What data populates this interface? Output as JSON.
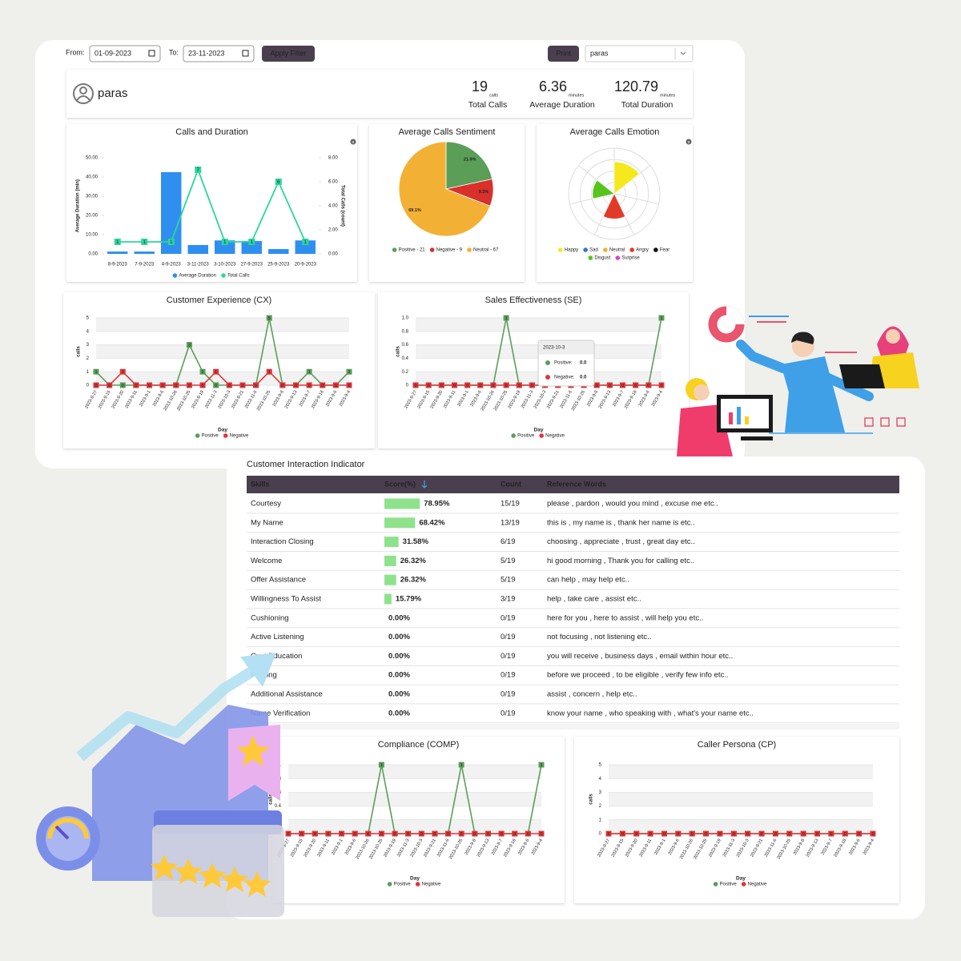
{
  "filter": {
    "from_label": "From:",
    "from": "01-09-2023",
    "to_label": "To:",
    "to": "23-11-2023",
    "apply": "Apply Filter",
    "print": "Print",
    "agent": "paras"
  },
  "profile": {
    "name": "paras",
    "stats": [
      {
        "value": 19,
        "unit": "calls",
        "label": "Total Calls"
      },
      {
        "value": 6.36,
        "unit": "minutes",
        "label": "Average Duration"
      },
      {
        "value": 120.79,
        "unit": "minutes",
        "label": "Total Duration"
      }
    ]
  },
  "chart_data": [
    {
      "type": "bar_line",
      "title": "Calls and Duration",
      "categories": [
        "8-9-2023",
        "7-9-2023",
        "4-9-2023",
        "3-11-2023",
        "3-10-2023",
        "27-9-2023",
        "25-9-2023",
        "20-9-2023"
      ],
      "series": [
        {
          "name": "Average Duration",
          "type": "bar",
          "color": "#2e8ff0",
          "values": [
            1.2,
            1.2,
            42.5,
            4.6,
            7,
            6.7,
            2.5,
            7
          ]
        },
        {
          "name": "Total Calls",
          "type": "line",
          "axis": "y2",
          "color": "#2bd69c",
          "values": [
            1,
            1,
            1,
            7,
            1,
            1,
            6,
            1
          ]
        }
      ],
      "ylabel": "Average Duration (min)",
      "y2label": "Total Calls (count)",
      "ylim": [
        0,
        50
      ],
      "yticks": [
        {
          "value": 0,
          "label": "0.00"
        },
        {
          "value": 10,
          "label": "10.00"
        },
        {
          "value": 20,
          "label": "20.00"
        },
        {
          "value": 30,
          "label": "30.00"
        },
        {
          "value": 40,
          "label": "40.00"
        },
        {
          "value": 50,
          "label": "50.00"
        }
      ],
      "y2lim": [
        0,
        8
      ],
      "y2ticks": [
        {
          "value": 0,
          "label": "0.00"
        },
        {
          "value": 2,
          "label": "2.00"
        },
        {
          "value": 4,
          "label": "4.00"
        },
        {
          "value": 6,
          "label": "6.00"
        },
        {
          "value": 8,
          "label": "8.00"
        }
      ]
    },
    {
      "type": "pie",
      "title": "Average Calls Sentiment",
      "labels": [
        "Positive - 21",
        "Negative - 9",
        "Neutral - 67"
      ],
      "values": [
        21.6,
        9.3,
        69.1
      ],
      "value_labels": [
        "21.6%",
        "9.3%",
        "69.1%"
      ],
      "colors": [
        "#5a9e58",
        "#d9302c",
        "#f2b134"
      ]
    },
    {
      "type": "polar_area",
      "title": "Average Calls Emotion",
      "categories": [
        "Happy",
        "Sad",
        "Neutral",
        "Angry",
        "Fear",
        "Disgust",
        "Surprise"
      ],
      "values": [
        2.8,
        0,
        0,
        2.2,
        0,
        1.9,
        0
      ],
      "rlim": [
        0,
        4
      ],
      "colors": [
        "#f5e81c",
        "#3d6fd6",
        "#f2b134",
        "#e23a28",
        "#111111",
        "#56c41a",
        "#e33fd0"
      ]
    },
    {
      "type": "line",
      "title": "Customer Experience (CX)",
      "ylabel": "calls",
      "xlabel": "Day",
      "categories": [
        "2023-9-27",
        "2023-9-15",
        "2023-9-20",
        "2023-9-11",
        "2023-9-1",
        "2023-9-6",
        "2023-10-26",
        "2023-10-25",
        "2023-9-19",
        "2023-11-3",
        "2023-10-3",
        "2023-9-21",
        "2023-11-6",
        "2023-10-25",
        "2023-9-8",
        "2023-9-13",
        "2023-9-7",
        "2023-9-18",
        "2023-9-6",
        "2023-9-4"
      ],
      "series": [
        {
          "name": "Positive",
          "color": "#5a9e58",
          "values": [
            1,
            0,
            0,
            0,
            0,
            0,
            0,
            3,
            1,
            0,
            0,
            0,
            0,
            5,
            0,
            0,
            1,
            0,
            0,
            1
          ]
        },
        {
          "name": "Negative",
          "color": "#e0353a",
          "values": [
            0,
            0,
            1,
            0,
            0,
            0,
            0,
            0,
            0,
            1,
            0,
            0,
            0,
            1,
            0,
            0,
            0,
            0,
            0,
            0
          ]
        }
      ],
      "ylim": [
        0,
        5
      ],
      "yticks": [
        0,
        1,
        2,
        3,
        4,
        5
      ],
      "grid": true
    },
    {
      "type": "line",
      "title": "Sales Effectiveness (SE)",
      "ylabel": "calls",
      "xlabel": "Day",
      "categories": [
        "2023-9-27",
        "2023-9-15",
        "2023-9-20",
        "2023-9-11",
        "2023-9-1",
        "2023-9-6",
        "2023-10-26",
        "2023-10-25",
        "2023-9-19",
        "2023-11-3",
        "2023-10-3",
        "2023-9-21",
        "2023-11-6",
        "2023-10-25",
        "2023-9-8",
        "2023-9-13",
        "2023-9-7",
        "2023-9-18",
        "2023-9-6",
        "2023-9-4"
      ],
      "series": [
        {
          "name": "Positive",
          "color": "#5a9e58",
          "values": [
            0,
            0,
            0,
            0,
            0,
            0,
            0,
            1,
            0,
            0,
            0,
            0,
            0,
            0,
            0,
            0,
            0,
            0,
            0,
            1
          ]
        },
        {
          "name": "Negative",
          "color": "#e0353a",
          "values": [
            0,
            0,
            0,
            0,
            0,
            0,
            0,
            0,
            0,
            0,
            0,
            0,
            0,
            0,
            0,
            0,
            0,
            0,
            0,
            0
          ]
        }
      ],
      "ylim": [
        0,
        1
      ],
      "yticks": [
        0,
        0.2,
        0.4,
        0.6,
        0.8,
        {
          "value": 1,
          "label": "1.0"
        }
      ],
      "grid": true,
      "tooltip": {
        "title": "2023-10-3",
        "items": [
          {
            "label": "Positive:",
            "value": "0.0"
          },
          {
            "label": "Negative:",
            "value": "0.0"
          }
        ]
      }
    },
    {
      "type": "line",
      "title": "Compliance (COMP)",
      "ylabel": "calls",
      "xlabel": "Day",
      "categories": [
        "2023-9-27",
        "2023-9-15",
        "2023-9-20",
        "2023-9-11",
        "2023-9-1",
        "2023-9-6",
        "2023-10-26",
        "2023-10-25",
        "2023-9-19",
        "2023-11-3",
        "2023-10-3",
        "2023-9-21",
        "2023-11-6",
        "2023-10-25",
        "2023-9-8",
        "2023-9-13",
        "2023-9-7",
        "2023-9-18",
        "2023-9-6",
        "2023-9-4"
      ],
      "series": [
        {
          "name": "Positive",
          "color": "#5a9e58",
          "values": [
            0,
            0,
            0,
            0,
            0,
            0,
            0,
            1,
            0,
            0,
            0,
            0,
            0,
            1,
            0,
            0,
            0,
            0,
            0,
            1
          ]
        },
        {
          "name": "Negative",
          "color": "#e0353a",
          "values": [
            0,
            0,
            0,
            0,
            0,
            0,
            0,
            0,
            0,
            0,
            0,
            0,
            0,
            0,
            0,
            0,
            0,
            0,
            0,
            0
          ]
        }
      ],
      "ylim": [
        0,
        1
      ],
      "yticks": [
        0,
        0.2,
        0.4,
        0.6,
        0.8,
        1
      ],
      "grid": true
    },
    {
      "type": "line",
      "title": "Caller Persona (CP)",
      "ylabel": "calls",
      "xlabel": "Day",
      "categories": [
        "2023-9-27",
        "2023-9-15",
        "2023-9-20",
        "2023-9-11",
        "2023-9-1",
        "2023-9-6",
        "2023-10-26",
        "2023-10-25",
        "2023-9-19",
        "2023-11-3",
        "2023-10-3",
        "2023-9-21",
        "2023-11-6",
        "2023-10-25",
        "2023-9-8",
        "2023-9-13",
        "2023-9-7",
        "2023-9-18",
        "2023-9-6",
        "2023-9-4"
      ],
      "series": [
        {
          "name": "Positive",
          "color": "#5a9e58",
          "values": [
            0,
            0,
            0,
            0,
            0,
            0,
            0,
            0,
            0,
            0,
            0,
            0,
            0,
            0,
            0,
            0,
            0,
            0,
            0,
            0
          ]
        },
        {
          "name": "Negative",
          "color": "#e0353a",
          "values": [
            0,
            0,
            0,
            0,
            0,
            0,
            0,
            0,
            0,
            0,
            0,
            0,
            0,
            0,
            0,
            0,
            0,
            0,
            0,
            0
          ]
        }
      ],
      "ylim": [
        0,
        5
      ],
      "yticks": [
        0,
        1,
        2,
        3,
        4,
        5
      ],
      "grid": true
    }
  ],
  "table": {
    "title": "Customer Interaction Indicator",
    "columns": [
      "Skills",
      "Score(%)",
      "Count",
      "Reference Words"
    ],
    "rows": [
      {
        "skill": "Courtesy",
        "score": 78.95,
        "score_label": "78.95%",
        "count": "15/19",
        "words": "please , pardon , would you mind , excuse me etc.."
      },
      {
        "skill": "My Name",
        "score": 68.42,
        "score_label": "68.42%",
        "count": "13/19",
        "words": "this is , my name is , thank her name is etc.."
      },
      {
        "skill": "Interaction Closing",
        "score": 31.58,
        "score_label": "31.58%",
        "count": "6/19",
        "words": "choosing , appreciate , trust , great day etc.."
      },
      {
        "skill": "Welcome",
        "score": 26.32,
        "score_label": "26.32%",
        "count": "5/19",
        "words": "hi good morning , Thank you for calling etc.."
      },
      {
        "skill": "Offer Assistance",
        "score": 26.32,
        "score_label": "26.32%",
        "count": "5/19",
        "words": "can help , may help etc.."
      },
      {
        "skill": "Willingness To Assist",
        "score": 15.79,
        "score_label": "15.79%",
        "count": "3/19",
        "words": "help , take care , assist etc.."
      },
      {
        "skill": "Cushioning",
        "score": 0,
        "score_label": "0.00%",
        "count": "0/19",
        "words": "here for you , here to assist , will help you etc.."
      },
      {
        "skill": "Active Listening",
        "score": 0,
        "score_label": "0.00%",
        "count": "0/19",
        "words": "not focusing , not listening etc.."
      },
      {
        "skill": "Cust Education",
        "score": 0,
        "score_label": "0.00%",
        "count": "0/19",
        "words": "you will receive , business days , email within hour etc.."
      },
      {
        "skill": "Probing",
        "score": 0,
        "score_label": "0.00%",
        "count": "0/19",
        "words": "before we proceed , to be eligible , verify few info etc.."
      },
      {
        "skill": "Additional Assistance",
        "score": 0,
        "score_label": "0.00%",
        "count": "0/19",
        "words": "assist , concern , help etc.."
      },
      {
        "skill": "Name Verification",
        "score": 0,
        "score_label": "0.00%",
        "count": "0/19",
        "words": "know your name , who speaking with , what's your name etc.."
      }
    ]
  }
}
